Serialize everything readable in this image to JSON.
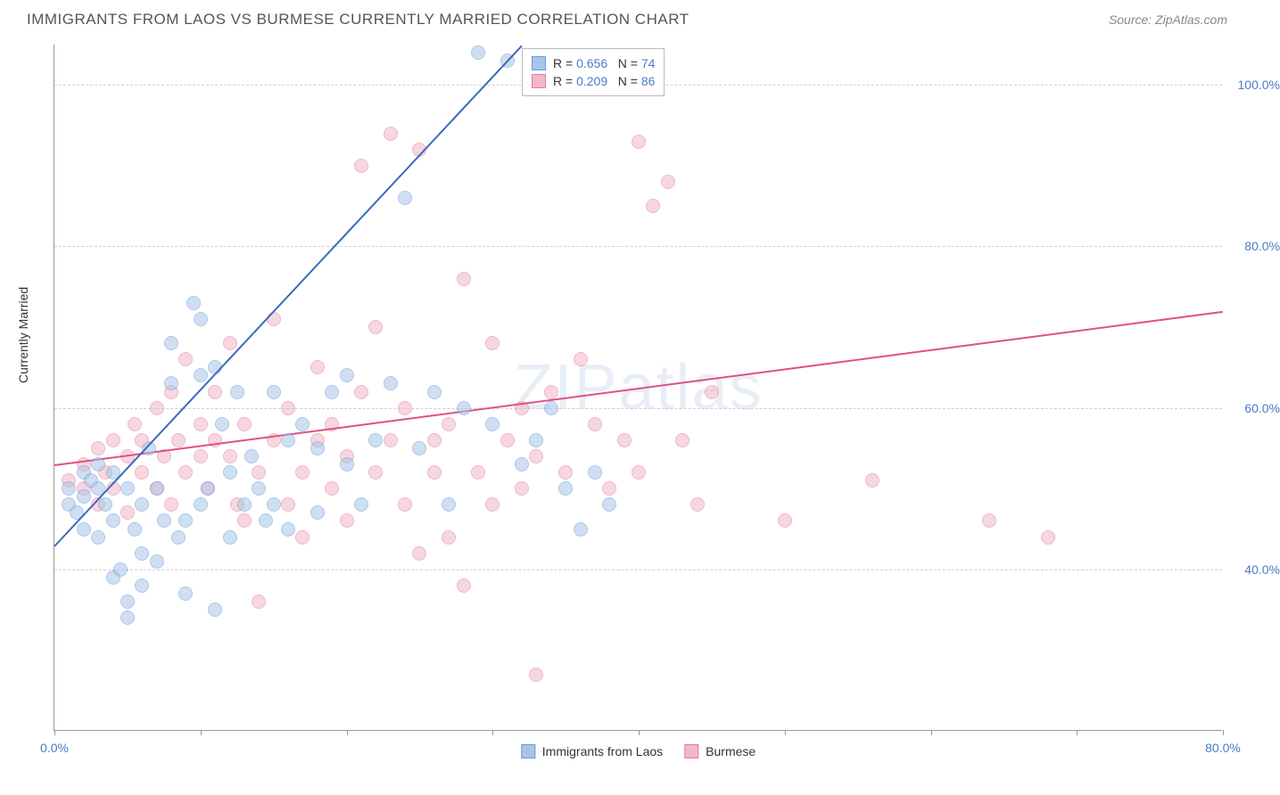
{
  "title": "IMMIGRANTS FROM LAOS VS BURMESE CURRENTLY MARRIED CORRELATION CHART",
  "source_label": "Source: ZipAtlas.com",
  "watermark": "ZIPatlas",
  "ylabel": "Currently Married",
  "chart": {
    "type": "scatter",
    "background_color": "#ffffff",
    "grid_color": "#d0d0d0",
    "axis_color": "#999999",
    "label_color": "#4a7bc8",
    "xlim": [
      0,
      80
    ],
    "ylim": [
      20,
      105
    ],
    "xticks": [
      0,
      10,
      20,
      30,
      40,
      50,
      60,
      70,
      80
    ],
    "xtick_labels": {
      "0": "0.0%",
      "80": "80.0%"
    },
    "yticks": [
      40,
      60,
      80,
      100
    ],
    "ytick_labels": {
      "40": "40.0%",
      "60": "60.0%",
      "80": "80.0%",
      "100": "100.0%"
    },
    "marker_radius": 8,
    "marker_stroke_width": 1.5,
    "trendline_width": 2
  },
  "series": {
    "laos": {
      "label": "Immigrants from Laos",
      "fill_color": "#a8c5e8",
      "stroke_color": "#6a9bd8",
      "fill_opacity": 0.55,
      "r_value": "0.656",
      "n_value": "74",
      "trend": {
        "x1": 0,
        "y1": 43,
        "x2": 32,
        "y2": 105,
        "color": "#3968c0"
      },
      "points": [
        [
          1,
          48
        ],
        [
          1,
          50
        ],
        [
          1.5,
          47
        ],
        [
          2,
          45
        ],
        [
          2,
          52
        ],
        [
          2,
          49
        ],
        [
          2.5,
          51
        ],
        [
          3,
          44
        ],
        [
          3,
          50
        ],
        [
          3,
          53
        ],
        [
          3.5,
          48
        ],
        [
          4,
          46
        ],
        [
          4,
          39
        ],
        [
          4,
          52
        ],
        [
          4.5,
          40
        ],
        [
          5,
          50
        ],
        [
          5,
          36
        ],
        [
          5,
          34
        ],
        [
          5.5,
          45
        ],
        [
          6,
          42
        ],
        [
          6,
          38
        ],
        [
          6,
          48
        ],
        [
          6.5,
          55
        ],
        [
          7,
          41
        ],
        [
          7,
          50
        ],
        [
          7.5,
          46
        ],
        [
          8,
          63
        ],
        [
          8,
          68
        ],
        [
          8.5,
          44
        ],
        [
          9,
          37
        ],
        [
          9,
          46
        ],
        [
          9.5,
          73
        ],
        [
          10,
          71
        ],
        [
          10,
          64
        ],
        [
          10,
          48
        ],
        [
          10.5,
          50
        ],
        [
          11,
          35
        ],
        [
          11,
          65
        ],
        [
          11.5,
          58
        ],
        [
          12,
          52
        ],
        [
          12,
          44
        ],
        [
          12.5,
          62
        ],
        [
          13,
          48
        ],
        [
          13.5,
          54
        ],
        [
          14,
          50
        ],
        [
          14.5,
          46
        ],
        [
          15,
          62
        ],
        [
          15,
          48
        ],
        [
          16,
          56
        ],
        [
          16,
          45
        ],
        [
          17,
          58
        ],
        [
          18,
          47
        ],
        [
          18,
          55
        ],
        [
          19,
          62
        ],
        [
          20,
          53
        ],
        [
          20,
          64
        ],
        [
          21,
          48
        ],
        [
          22,
          56
        ],
        [
          23,
          63
        ],
        [
          24,
          86
        ],
        [
          25,
          55
        ],
        [
          26,
          62
        ],
        [
          27,
          48
        ],
        [
          28,
          60
        ],
        [
          29,
          104
        ],
        [
          30,
          58
        ],
        [
          31,
          103
        ],
        [
          32,
          53
        ],
        [
          33,
          56
        ],
        [
          34,
          60
        ],
        [
          35,
          50
        ],
        [
          36,
          45
        ],
        [
          37,
          52
        ],
        [
          38,
          48
        ]
      ]
    },
    "burmese": {
      "label": "Burmese",
      "fill_color": "#f2b8c6",
      "stroke_color": "#e87a9a",
      "fill_opacity": 0.55,
      "r_value": "0.209",
      "n_value": "86",
      "trend": {
        "x1": 0,
        "y1": 53,
        "x2": 80,
        "y2": 72,
        "color": "#e05080"
      },
      "points": [
        [
          1,
          51
        ],
        [
          2,
          53
        ],
        [
          2,
          50
        ],
        [
          3,
          48
        ],
        [
          3,
          55
        ],
        [
          3.5,
          52
        ],
        [
          4,
          56
        ],
        [
          4,
          50
        ],
        [
          5,
          54
        ],
        [
          5,
          47
        ],
        [
          5.5,
          58
        ],
        [
          6,
          52
        ],
        [
          6,
          56
        ],
        [
          7,
          50
        ],
        [
          7,
          60
        ],
        [
          7.5,
          54
        ],
        [
          8,
          48
        ],
        [
          8,
          62
        ],
        [
          8.5,
          56
        ],
        [
          9,
          52
        ],
        [
          9,
          66
        ],
        [
          10,
          58
        ],
        [
          10,
          54
        ],
        [
          10.5,
          50
        ],
        [
          11,
          62
        ],
        [
          11,
          56
        ],
        [
          12,
          68
        ],
        [
          12,
          54
        ],
        [
          12.5,
          48
        ],
        [
          13,
          58
        ],
        [
          13,
          46
        ],
        [
          14,
          52
        ],
        [
          14,
          36
        ],
        [
          15,
          56
        ],
        [
          15,
          71
        ],
        [
          16,
          48
        ],
        [
          16,
          60
        ],
        [
          17,
          52
        ],
        [
          17,
          44
        ],
        [
          18,
          56
        ],
        [
          18,
          65
        ],
        [
          19,
          50
        ],
        [
          19,
          58
        ],
        [
          20,
          46
        ],
        [
          20,
          54
        ],
        [
          21,
          90
        ],
        [
          21,
          62
        ],
        [
          22,
          52
        ],
        [
          22,
          70
        ],
        [
          23,
          56
        ],
        [
          23,
          94
        ],
        [
          24,
          48
        ],
        [
          24,
          60
        ],
        [
          25,
          92
        ],
        [
          25,
          42
        ],
        [
          26,
          56
        ],
        [
          26,
          52
        ],
        [
          27,
          58
        ],
        [
          27,
          44
        ],
        [
          28,
          38
        ],
        [
          28,
          76
        ],
        [
          29,
          52
        ],
        [
          30,
          68
        ],
        [
          30,
          48
        ],
        [
          31,
          56
        ],
        [
          32,
          50
        ],
        [
          32,
          60
        ],
        [
          33,
          27
        ],
        [
          33,
          54
        ],
        [
          34,
          62
        ],
        [
          35,
          52
        ],
        [
          36,
          66
        ],
        [
          37,
          58
        ],
        [
          38,
          50
        ],
        [
          39,
          56
        ],
        [
          40,
          93
        ],
        [
          40,
          52
        ],
        [
          41,
          85
        ],
        [
          42,
          88
        ],
        [
          43,
          56
        ],
        [
          44,
          48
        ],
        [
          45,
          62
        ],
        [
          50,
          46
        ],
        [
          56,
          51
        ],
        [
          64,
          46
        ],
        [
          68,
          44
        ]
      ]
    }
  },
  "legend_box": {
    "r_prefix": "R =",
    "n_prefix": "N ="
  }
}
